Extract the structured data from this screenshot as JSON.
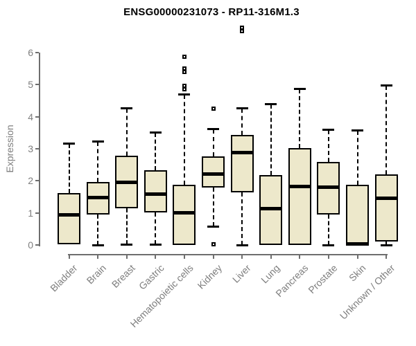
{
  "chart_data": {
    "type": "boxplot",
    "title": "ENSG00000231073 - RP11-316M1.3",
    "xlabel": "",
    "ylabel": "Expression",
    "ylim": [
      0,
      6
    ],
    "yticks": [
      0,
      1,
      2,
      3,
      4,
      5,
      6
    ],
    "grid": false,
    "legend": "none",
    "categories": [
      "Bladder",
      "Brain",
      "Breast",
      "Gastric",
      "Hematopoietic cells",
      "Kidney",
      "Liver",
      "Lung",
      "Pancreas",
      "Prostate",
      "Skin",
      "Unknown / Other"
    ],
    "series": [
      {
        "name": "Bladder",
        "min": 0.02,
        "q1": 0.02,
        "median": 0.93,
        "q3": 1.61,
        "max": 3.15,
        "outliers": []
      },
      {
        "name": "Brain",
        "min": 0.0,
        "q1": 0.95,
        "median": 1.47,
        "q3": 1.96,
        "max": 3.21,
        "outliers": []
      },
      {
        "name": "Breast",
        "min": 0.02,
        "q1": 1.14,
        "median": 1.96,
        "q3": 2.79,
        "max": 4.25,
        "outliers": []
      },
      {
        "name": "Gastric",
        "min": 0.02,
        "q1": 1.01,
        "median": 1.58,
        "q3": 2.33,
        "max": 3.49,
        "outliers": []
      },
      {
        "name": "Hematopoietic cells",
        "min": 0.0,
        "q1": 0.0,
        "median": 1.01,
        "q3": 1.88,
        "max": 4.69,
        "outliers": [
          4.86,
          4.96,
          5.4,
          5.51,
          5.86
        ]
      },
      {
        "name": "Kidney",
        "min": 0.59,
        "q1": 1.79,
        "median": 2.22,
        "q3": 2.77,
        "max": 3.61,
        "outliers": [
          0.02,
          4.26
        ]
      },
      {
        "name": "Liver",
        "min": 0.0,
        "q1": 1.63,
        "median": 2.89,
        "q3": 3.43,
        "max": 4.26,
        "outliers": [
          6.67,
          6.78
        ]
      },
      {
        "name": "Lung",
        "min": 0.0,
        "q1": 0.0,
        "median": 1.14,
        "q3": 2.19,
        "max": 4.39,
        "outliers": []
      },
      {
        "name": "Pancreas",
        "min": 0.0,
        "q1": 0.0,
        "median": 1.83,
        "q3": 3.02,
        "max": 4.85,
        "outliers": []
      },
      {
        "name": "Prostate",
        "min": 0.0,
        "q1": 0.95,
        "median": 1.8,
        "q3": 2.58,
        "max": 3.58,
        "outliers": []
      },
      {
        "name": "Skin",
        "min": 0.0,
        "q1": 0.0,
        "median": 0.03,
        "q3": 1.87,
        "max": 3.56,
        "outliers": []
      },
      {
        "name": "Unknown / Other",
        "min": 0.0,
        "q1": 0.11,
        "median": 1.45,
        "q3": 2.21,
        "max": 4.97,
        "outliers": []
      }
    ],
    "colors": {
      "box_fill": "#ede8cb",
      "box_border": "#000000",
      "median": "#000000",
      "axis_line": "#6e6e6e",
      "axis_text": "#7e7e7e",
      "title_text": "#000000",
      "background": "#ffffff"
    }
  }
}
